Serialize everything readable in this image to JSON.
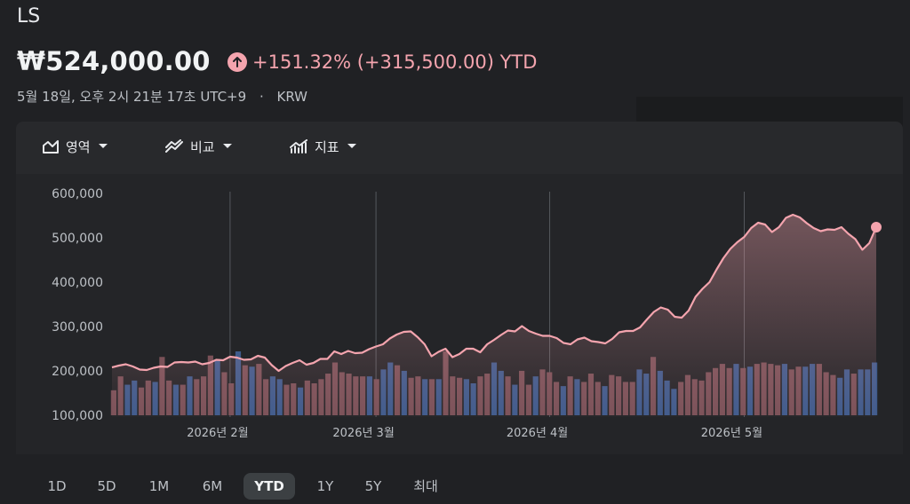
{
  "header": {
    "ticker": "LS",
    "price": "₩524,000.00",
    "change": "+151.32% (+315,500.00) YTD",
    "timestamp": "5월 18일, 오후 2시 21분 17초 UTC+9",
    "separator": "·",
    "currency": "KRW"
  },
  "toolbar": {
    "area_label": "영역",
    "compare_label": "비교",
    "indicator_label": "지표"
  },
  "ranges": [
    "1D",
    "5D",
    "1M",
    "6M",
    "YTD",
    "1Y",
    "5Y",
    "최대"
  ],
  "active_range": "YTD",
  "colors": {
    "up": "#f4a4ae",
    "volume_down": "#7a5158",
    "volume_up": "#3f5b8c"
  },
  "chart_data": {
    "type": "area",
    "ylim": [
      100000,
      620000
    ],
    "y_ticks": [
      "600,000",
      "500,000",
      "400,000",
      "300,000",
      "200,000",
      "100,000"
    ],
    "y_tick_values": [
      600000,
      500000,
      400000,
      300000,
      200000,
      100000
    ],
    "x_labels": [
      "2026년 2월",
      "2026년 3월",
      "2026년 4월",
      "2026년 5월"
    ],
    "x_label_index": [
      17,
      38,
      63,
      91
    ],
    "price": [
      208000,
      212000,
      215000,
      210000,
      203000,
      202000,
      207000,
      210000,
      209000,
      219000,
      220000,
      219000,
      221000,
      215000,
      218000,
      225000,
      224000,
      232000,
      230000,
      225000,
      226000,
      234000,
      230000,
      213000,
      200000,
      211000,
      218000,
      224000,
      214000,
      218000,
      227000,
      227000,
      244000,
      238000,
      245000,
      240000,
      241000,
      249000,
      255000,
      260000,
      273000,
      282000,
      288000,
      289000,
      276000,
      260000,
      233000,
      243000,
      250000,
      231000,
      238000,
      250000,
      250000,
      242000,
      260000,
      270000,
      281000,
      291000,
      289000,
      301000,
      290000,
      284000,
      279000,
      279000,
      274000,
      263000,
      260000,
      271000,
      275000,
      267000,
      265000,
      262000,
      272000,
      287000,
      290000,
      290000,
      298000,
      316000,
      333000,
      343000,
      338000,
      322000,
      320000,
      336000,
      367000,
      385000,
      400000,
      428000,
      454000,
      475000,
      490000,
      502000,
      522000,
      534000,
      530000,
      513000,
      524000,
      545000,
      552000,
      546000,
      533000,
      522000,
      515000,
      519000,
      518000,
      524000,
      509000,
      497000,
      473000,
      488000,
      524000
    ],
    "volume": [
      [
        0.18,
        0
      ],
      [
        0.28,
        0
      ],
      [
        0.22,
        1
      ],
      [
        0.25,
        1
      ],
      [
        0.2,
        0
      ],
      [
        0.25,
        0
      ],
      [
        0.24,
        1
      ],
      [
        0.42,
        0
      ],
      [
        0.25,
        0
      ],
      [
        0.22,
        1
      ],
      [
        0.22,
        0
      ],
      [
        0.28,
        1
      ],
      [
        0.26,
        0
      ],
      [
        0.28,
        0
      ],
      [
        0.43,
        0
      ],
      [
        0.4,
        1
      ],
      [
        0.31,
        0
      ],
      [
        0.23,
        0
      ],
      [
        0.46,
        1
      ],
      [
        0.36,
        0
      ],
      [
        0.35,
        1
      ],
      [
        0.37,
        0
      ],
      [
        0.26,
        0
      ],
      [
        0.28,
        1
      ],
      [
        0.26,
        1
      ],
      [
        0.22,
        0
      ],
      [
        0.23,
        0
      ],
      [
        0.2,
        1
      ],
      [
        0.25,
        0
      ],
      [
        0.23,
        0
      ],
      [
        0.26,
        0
      ],
      [
        0.3,
        0
      ],
      [
        0.38,
        0
      ],
      [
        0.31,
        0
      ],
      [
        0.3,
        0
      ],
      [
        0.28,
        0
      ],
      [
        0.28,
        0
      ],
      [
        0.28,
        1
      ],
      [
        0.26,
        0
      ],
      [
        0.33,
        1
      ],
      [
        0.38,
        1
      ],
      [
        0.36,
        0
      ],
      [
        0.32,
        1
      ],
      [
        0.27,
        0
      ],
      [
        0.28,
        0
      ],
      [
        0.26,
        1
      ],
      [
        0.26,
        0
      ],
      [
        0.26,
        1
      ],
      [
        0.46,
        0
      ],
      [
        0.28,
        0
      ],
      [
        0.27,
        0
      ],
      [
        0.26,
        1
      ],
      [
        0.23,
        1
      ],
      [
        0.28,
        0
      ],
      [
        0.3,
        0
      ],
      [
        0.38,
        1
      ],
      [
        0.32,
        1
      ],
      [
        0.28,
        0
      ],
      [
        0.22,
        1
      ],
      [
        0.32,
        0
      ],
      [
        0.22,
        0
      ],
      [
        0.28,
        1
      ],
      [
        0.33,
        0
      ],
      [
        0.31,
        0
      ],
      [
        0.24,
        0
      ],
      [
        0.21,
        1
      ],
      [
        0.28,
        0
      ],
      [
        0.26,
        1
      ],
      [
        0.24,
        0
      ],
      [
        0.3,
        0
      ],
      [
        0.24,
        0
      ],
      [
        0.21,
        1
      ],
      [
        0.29,
        0
      ],
      [
        0.28,
        0
      ],
      [
        0.24,
        0
      ],
      [
        0.24,
        0
      ],
      [
        0.33,
        1
      ],
      [
        0.3,
        1
      ],
      [
        0.42,
        0
      ],
      [
        0.32,
        1
      ],
      [
        0.25,
        1
      ],
      [
        0.19,
        1
      ],
      [
        0.24,
        0
      ],
      [
        0.29,
        0
      ],
      [
        0.26,
        0
      ],
      [
        0.25,
        0
      ],
      [
        0.31,
        0
      ],
      [
        0.34,
        0
      ],
      [
        0.37,
        0
      ],
      [
        0.34,
        0
      ],
      [
        0.37,
        1
      ],
      [
        0.34,
        0
      ],
      [
        0.35,
        1
      ],
      [
        0.37,
        0
      ],
      [
        0.38,
        0
      ],
      [
        0.37,
        0
      ],
      [
        0.36,
        0
      ],
      [
        0.37,
        1
      ],
      [
        0.33,
        0
      ],
      [
        0.35,
        0
      ],
      [
        0.35,
        1
      ],
      [
        0.37,
        1
      ],
      [
        0.37,
        0
      ],
      [
        0.31,
        0
      ],
      [
        0.29,
        0
      ],
      [
        0.27,
        1
      ],
      [
        0.33,
        1
      ],
      [
        0.3,
        0
      ],
      [
        0.33,
        1
      ],
      [
        0.33,
        1
      ],
      [
        0.38,
        1
      ]
    ]
  }
}
